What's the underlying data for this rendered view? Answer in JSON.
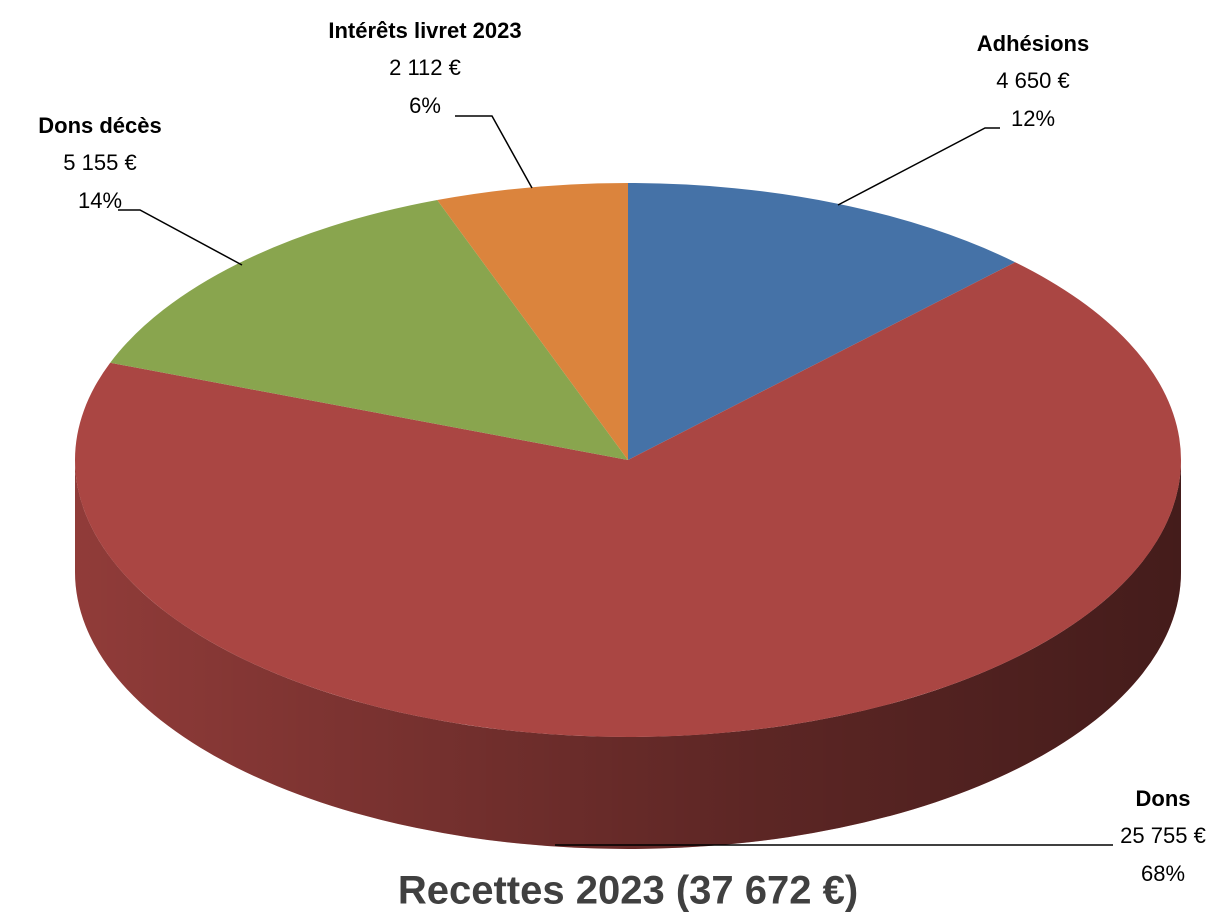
{
  "chart_data": {
    "type": "pie",
    "title": "Recettes 2023 (37 672 €)",
    "categories": [
      "Adhésions",
      "Dons",
      "Dons décès",
      "Intérêts livret 2023"
    ],
    "values": [
      4650,
      25755,
      5155,
      2112
    ],
    "value_labels": [
      "4 650 €",
      "25 755 €",
      "5 155 €",
      "2 112 €"
    ],
    "percent_values": [
      12,
      68,
      14,
      6
    ],
    "percent_labels": [
      "12%",
      "68%",
      "14%",
      "6%"
    ],
    "colors": [
      "#4572a7",
      "#aa4643",
      "#89a54e",
      "#db843d"
    ]
  }
}
